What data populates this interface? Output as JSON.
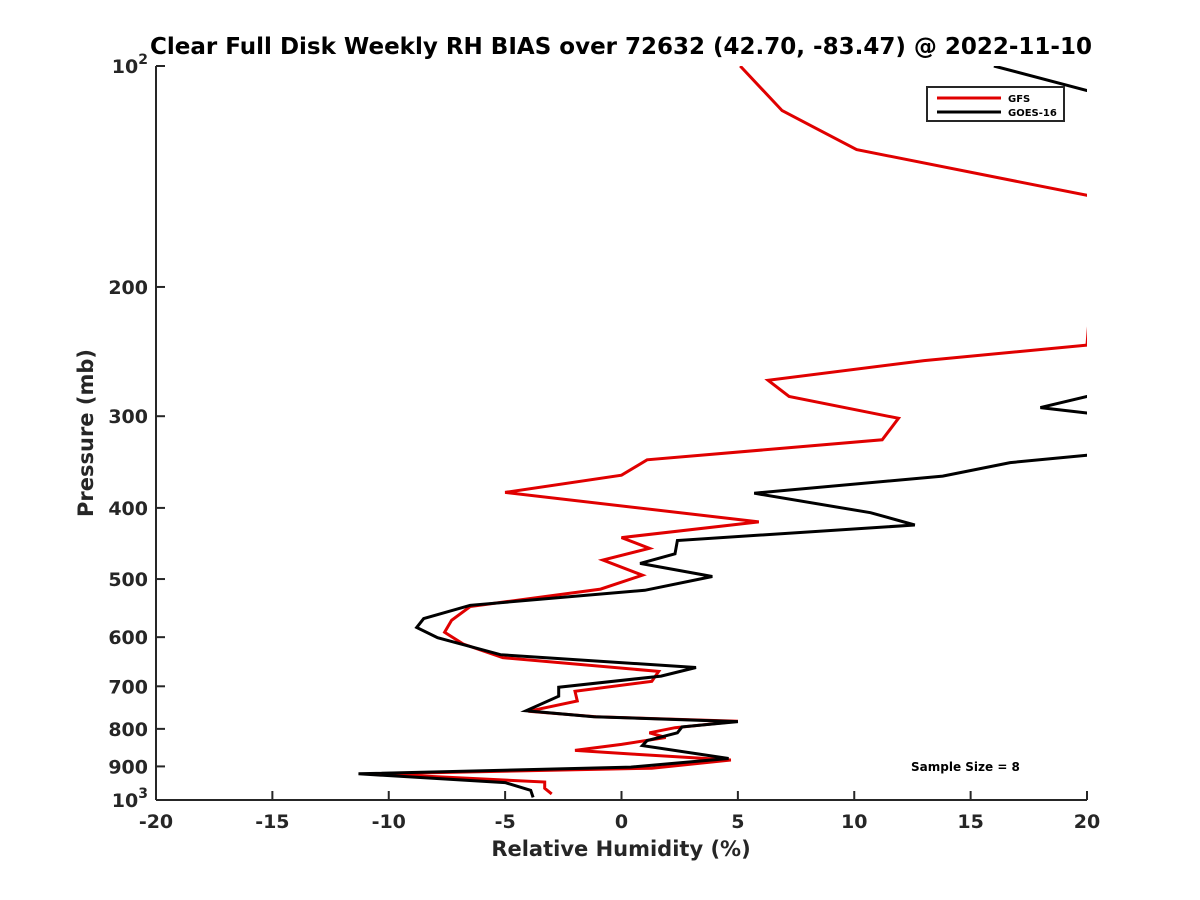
{
  "chart_data": {
    "type": "line",
    "title": "Clear Full Disk Weekly RH BIAS over 72632 (42.70, -83.47) @ 2022-11-10",
    "xlabel": "Relative Humidity (%)",
    "ylabel": "Pressure (mb)",
    "xlim": [
      -20,
      20
    ],
    "ylim": [
      100,
      1000
    ],
    "yscale": "log",
    "y_reversed": true,
    "grid": false,
    "legend_position": "top-right",
    "x_ticks": [
      {
        "value": -20,
        "label": "-20"
      },
      {
        "value": -15,
        "label": "-15"
      },
      {
        "value": -10,
        "label": "-10"
      },
      {
        "value": -5,
        "label": "-5"
      },
      {
        "value": 0,
        "label": "0"
      },
      {
        "value": 5,
        "label": "5"
      },
      {
        "value": 10,
        "label": "10"
      },
      {
        "value": 15,
        "label": "15"
      },
      {
        "value": 20,
        "label": "20"
      }
    ],
    "y_ticks": [
      {
        "value": 100,
        "base": "10",
        "exp": "2"
      },
      {
        "value": 200,
        "label": "200"
      },
      {
        "value": 300,
        "label": "300"
      },
      {
        "value": 400,
        "label": "400"
      },
      {
        "value": 500,
        "label": "500"
      },
      {
        "value": 600,
        "label": "600"
      },
      {
        "value": 700,
        "label": "700"
      },
      {
        "value": 800,
        "label": "800"
      },
      {
        "value": 900,
        "label": "900"
      },
      {
        "value": 1000,
        "base": "10",
        "exp": "3"
      }
    ],
    "series": [
      {
        "name": "GFS",
        "color": "#e00000",
        "points": [
          [
            5.1,
            100
          ],
          [
            6.9,
            115
          ],
          [
            10.1,
            130
          ],
          [
            20,
            150
          ],
          [
            20.5,
            152
          ],
          [
            20,
            240
          ],
          [
            13.0,
            252
          ],
          [
            6.3,
            268
          ],
          [
            7.2,
            282
          ],
          [
            11.9,
            302
          ],
          [
            11.2,
            323
          ],
          [
            1.1,
            344
          ],
          [
            0.0,
            361
          ],
          [
            -5.0,
            381
          ],
          [
            5.9,
            418
          ],
          [
            0.0,
            439
          ],
          [
            1.2,
            454
          ],
          [
            -0.8,
            471
          ],
          [
            0.9,
            494
          ],
          [
            -0.9,
            516
          ],
          [
            -6.5,
            545
          ],
          [
            -7.3,
            569
          ],
          [
            -7.6,
            591
          ],
          [
            -6.8,
            613
          ],
          [
            -5.1,
            640
          ],
          [
            1.6,
            668
          ],
          [
            1.3,
            689
          ],
          [
            -2.0,
            711
          ],
          [
            -1.9,
            733
          ],
          [
            -4.0,
            757
          ],
          [
            -1.1,
            770
          ],
          [
            5.0,
            781
          ],
          [
            2.3,
            797
          ],
          [
            1.2,
            810
          ],
          [
            1.9,
            822
          ],
          [
            0.0,
            840
          ],
          [
            -2.0,
            856
          ],
          [
            0.5,
            866
          ],
          [
            4.7,
            882
          ],
          [
            1.3,
            905
          ],
          [
            -10.5,
            921
          ],
          [
            -3.3,
            945
          ],
          [
            -3.3,
            964
          ],
          [
            -3.0,
            981
          ]
        ]
      },
      {
        "name": "GOES-16",
        "color": "#000000",
        "points": [
          [
            16.0,
            100
          ],
          [
            20,
            108
          ],
          [
            20.5,
            109
          ],
          [
            20.5,
            280
          ],
          [
            20,
            282
          ],
          [
            18.0,
            292
          ],
          [
            20,
            297
          ],
          [
            20.5,
            298
          ],
          [
            20.5,
            338
          ],
          [
            20,
            339
          ],
          [
            16.7,
            347
          ],
          [
            13.8,
            362
          ],
          [
            5.7,
            382
          ],
          [
            10.7,
            406
          ],
          [
            12.6,
            422
          ],
          [
            2.4,
            443
          ],
          [
            2.3,
            462
          ],
          [
            0.8,
            476
          ],
          [
            3.9,
            496
          ],
          [
            1.0,
            518
          ],
          [
            -6.5,
            543
          ],
          [
            -8.5,
            566
          ],
          [
            -8.8,
            582
          ],
          [
            -7.9,
            601
          ],
          [
            -5.2,
            634
          ],
          [
            3.2,
            660
          ],
          [
            1.7,
            678
          ],
          [
            -2.7,
            702
          ],
          [
            -2.7,
            722
          ],
          [
            -4.1,
            756
          ],
          [
            -1.2,
            770
          ],
          [
            5.0,
            782
          ],
          [
            2.6,
            795
          ],
          [
            2.4,
            810
          ],
          [
            1.1,
            830
          ],
          [
            0.9,
            843
          ],
          [
            4.6,
            878
          ],
          [
            0.4,
            902
          ],
          [
            -11.3,
            921
          ],
          [
            -5.0,
            947
          ],
          [
            -3.9,
            970
          ],
          [
            -3.8,
            992
          ]
        ]
      }
    ],
    "annotation": "Sample Size = 8"
  }
}
